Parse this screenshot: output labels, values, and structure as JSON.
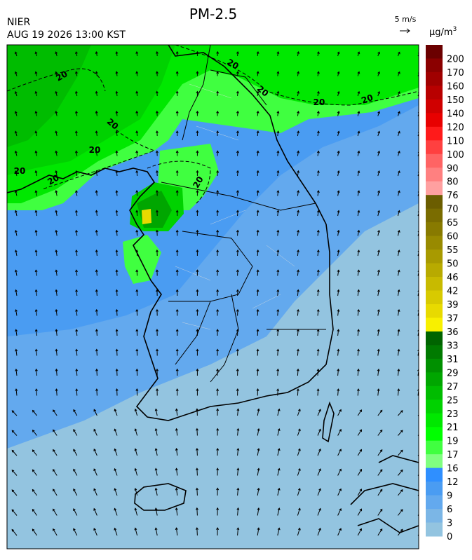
{
  "header": {
    "title": "PM-2.5",
    "agency": "NIER",
    "datetime": "AUG 19 2026 13:00 KST",
    "wind_scale": "5 m/s",
    "unit": "μg/m",
    "unit_exponent": "3"
  },
  "colorbar": {
    "levels": [
      200,
      170,
      160,
      150,
      140,
      120,
      110,
      100,
      90,
      80,
      76,
      70,
      65,
      60,
      55,
      50,
      46,
      42,
      39,
      37,
      36,
      33,
      31,
      29,
      27,
      25,
      23,
      21,
      19,
      17,
      16,
      12,
      9,
      6,
      3,
      0
    ],
    "colors": [
      "#6b0000",
      "#8b0000",
      "#a00000",
      "#b80000",
      "#d00000",
      "#e80000",
      "#ff1a1a",
      "#ff4040",
      "#ff6464",
      "#ff8080",
      "#ffa0a0",
      "#6b5d00",
      "#7a6c00",
      "#887a00",
      "#988a00",
      "#a89a00",
      "#b8aa00",
      "#c8ba00",
      "#d8ca00",
      "#e8da00",
      "#f8f000",
      "#006400",
      "#007a00",
      "#009000",
      "#00a600",
      "#00bc00",
      "#00d200",
      "#00e800",
      "#00ff00",
      "#40ff40",
      "#80ff80",
      "#2f8fff",
      "#4a9cf2",
      "#63a9ee",
      "#7bb6e6",
      "#93c4e0"
    ]
  },
  "map": {
    "contour_labels": [
      "20",
      "20",
      "20",
      "20",
      "20",
      "20",
      "20",
      "20",
      "20",
      "20"
    ]
  }
}
